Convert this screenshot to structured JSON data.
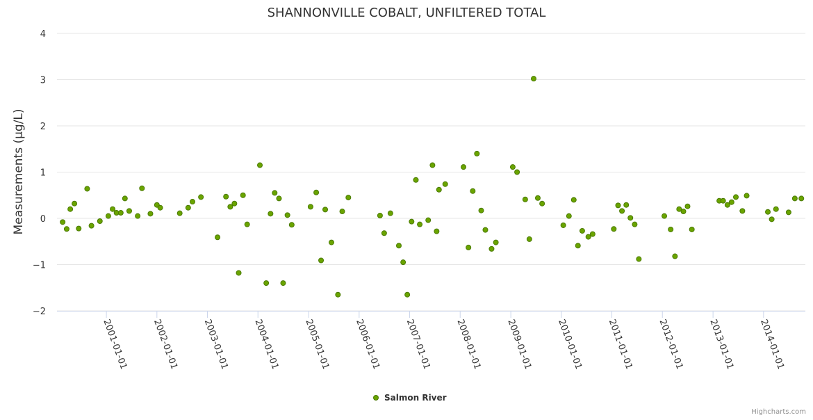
{
  "chart_data": {
    "type": "scatter",
    "title": "SHANNONVILLE COBALT, UNFILTERED TOTAL",
    "xlabel": "",
    "ylabel": "Measurements (µg/L)",
    "ylim": [
      -2,
      4
    ],
    "yticks": [
      "4",
      "3",
      "2",
      "1",
      "0",
      "−1",
      "−2"
    ],
    "xlim": [
      "2000-01-10",
      "2014-10-30"
    ],
    "xticks": [
      "2001-01-01",
      "2002-01-01",
      "2003-01-01",
      "2004-01-01",
      "2005-01-01",
      "2006-01-01",
      "2007-01-01",
      "2008-01-01",
      "2009-01-01",
      "2010-01-01",
      "2011-01-01",
      "2012-01-01",
      "2013-01-01",
      "2014-01-01"
    ],
    "grid": true,
    "legend_position": "bottom-center",
    "colors": {
      "marker_fill": "#6aa400",
      "marker_stroke": "#4a7a00",
      "grid": "#e6e6e6",
      "axis": "#ccd6eb"
    },
    "series": [
      {
        "name": "Salmon River",
        "points": [
          [
            "2000-02-20",
            -0.08
          ],
          [
            "2000-03-20",
            -0.23
          ],
          [
            "2000-04-15",
            0.2
          ],
          [
            "2000-05-15",
            0.32
          ],
          [
            "2000-06-15",
            -0.22
          ],
          [
            "2000-08-15",
            0.64
          ],
          [
            "2000-09-15",
            -0.16
          ],
          [
            "2000-11-15",
            -0.06
          ],
          [
            "2001-01-15",
            0.05
          ],
          [
            "2001-02-15",
            0.2
          ],
          [
            "2001-03-15",
            0.12
          ],
          [
            "2001-04-15",
            0.12
          ],
          [
            "2001-05-15",
            0.43
          ],
          [
            "2001-06-15",
            0.16
          ],
          [
            "2001-08-15",
            0.05
          ],
          [
            "2001-09-15",
            0.65
          ],
          [
            "2001-11-15",
            0.1
          ],
          [
            "2002-01-01",
            0.29
          ],
          [
            "2002-01-25",
            0.23
          ],
          [
            "2002-06-15",
            0.11
          ],
          [
            "2002-08-15",
            0.23
          ],
          [
            "2002-09-15",
            0.36
          ],
          [
            "2002-11-15",
            0.46
          ],
          [
            "2003-03-15",
            -0.41
          ],
          [
            "2003-05-15",
            0.47
          ],
          [
            "2003-06-15",
            0.25
          ],
          [
            "2003-07-15",
            0.32
          ],
          [
            "2003-08-15",
            -1.18
          ],
          [
            "2003-09-15",
            0.5
          ],
          [
            "2003-10-15",
            -0.13
          ],
          [
            "2004-01-15",
            1.15
          ],
          [
            "2004-03-01",
            -1.4
          ],
          [
            "2004-04-01",
            0.1
          ],
          [
            "2004-05-01",
            0.55
          ],
          [
            "2004-06-01",
            0.43
          ],
          [
            "2004-07-01",
            -1.4
          ],
          [
            "2004-08-01",
            0.07
          ],
          [
            "2004-09-01",
            -0.14
          ],
          [
            "2005-01-15",
            0.25
          ],
          [
            "2005-02-25",
            0.56
          ],
          [
            "2005-04-01",
            -0.91
          ],
          [
            "2005-05-01",
            0.19
          ],
          [
            "2005-06-15",
            -0.52
          ],
          [
            "2005-08-01",
            -1.65
          ],
          [
            "2005-09-01",
            0.15
          ],
          [
            "2005-10-15",
            0.45
          ],
          [
            "2006-06-01",
            0.06
          ],
          [
            "2006-07-01",
            -0.32
          ],
          [
            "2006-08-15",
            0.11
          ],
          [
            "2006-10-15",
            -0.59
          ],
          [
            "2006-11-15",
            -0.95
          ],
          [
            "2006-12-15",
            -1.65
          ],
          [
            "2007-01-15",
            -0.07
          ],
          [
            "2007-02-15",
            0.83
          ],
          [
            "2007-03-15",
            -0.13
          ],
          [
            "2007-05-15",
            -0.04
          ],
          [
            "2007-06-15",
            1.15
          ],
          [
            "2007-07-15",
            -0.28
          ],
          [
            "2007-08-01",
            0.62
          ],
          [
            "2007-09-15",
            0.74
          ],
          [
            "2008-01-25",
            1.11
          ],
          [
            "2008-03-01",
            -0.63
          ],
          [
            "2008-04-01",
            0.59
          ],
          [
            "2008-05-01",
            1.4
          ],
          [
            "2008-06-01",
            0.17
          ],
          [
            "2008-07-01",
            -0.25
          ],
          [
            "2008-08-15",
            -0.66
          ],
          [
            "2008-09-15",
            -0.52
          ],
          [
            "2009-01-15",
            1.11
          ],
          [
            "2009-02-15",
            1.0
          ],
          [
            "2009-04-15",
            0.41
          ],
          [
            "2009-05-15",
            -0.45
          ],
          [
            "2009-06-15",
            3.02
          ],
          [
            "2009-07-15",
            0.44
          ],
          [
            "2009-08-15",
            0.32
          ],
          [
            "2010-01-15",
            -0.15
          ],
          [
            "2010-02-25",
            0.05
          ],
          [
            "2010-04-01",
            0.4
          ],
          [
            "2010-05-01",
            -0.59
          ],
          [
            "2010-06-01",
            -0.27
          ],
          [
            "2010-07-15",
            -0.4
          ],
          [
            "2010-08-15",
            -0.34
          ],
          [
            "2011-01-15",
            -0.23
          ],
          [
            "2011-02-15",
            0.28
          ],
          [
            "2011-03-15",
            0.16
          ],
          [
            "2011-04-15",
            0.29
          ],
          [
            "2011-05-15",
            0.01
          ],
          [
            "2011-06-15",
            -0.13
          ],
          [
            "2011-07-15",
            -0.88
          ],
          [
            "2012-01-15",
            0.05
          ],
          [
            "2012-03-01",
            -0.24
          ],
          [
            "2012-04-01",
            -0.82
          ],
          [
            "2012-05-01",
            0.2
          ],
          [
            "2012-06-01",
            0.15
          ],
          [
            "2012-07-01",
            0.26
          ],
          [
            "2012-08-01",
            -0.24
          ],
          [
            "2013-02-15",
            0.38
          ],
          [
            "2013-03-15",
            0.38
          ],
          [
            "2013-04-15",
            0.29
          ],
          [
            "2013-05-15",
            0.35
          ],
          [
            "2013-06-15",
            0.46
          ],
          [
            "2013-08-01",
            0.16
          ],
          [
            "2013-09-01",
            0.49
          ],
          [
            "2014-02-01",
            0.14
          ],
          [
            "2014-03-01",
            -0.02
          ],
          [
            "2014-04-01",
            0.2
          ],
          [
            "2014-07-01",
            0.13
          ],
          [
            "2014-08-15",
            0.43
          ],
          [
            "2014-10-01",
            0.43
          ]
        ]
      }
    ]
  },
  "credits": "Highcharts.com"
}
